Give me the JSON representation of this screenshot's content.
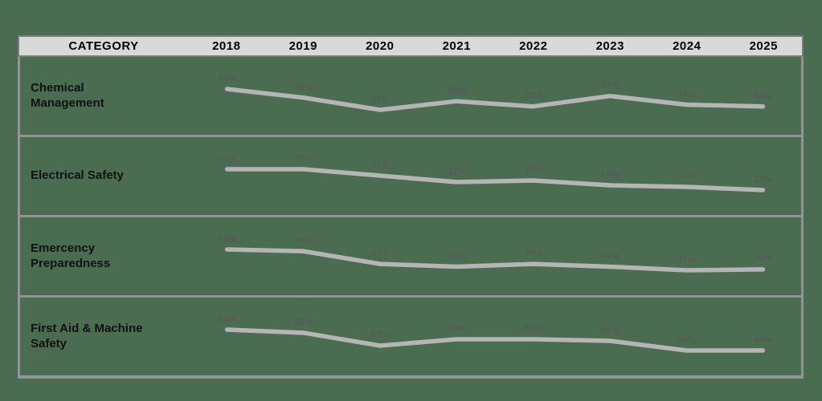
{
  "header": {
    "category_label": "CATEGORY"
  },
  "chart_data": {
    "type": "line",
    "categories": [
      "2018",
      "2019",
      "2020",
      "2021",
      "2022",
      "2023",
      "2024",
      "2025"
    ],
    "series": [
      {
        "name": "Chemical Management",
        "values": [
          43,
          38,
          31,
          36,
          33,
          39,
          34,
          33
        ]
      },
      {
        "name": "Electrical Safety",
        "values": [
          25,
          25,
          21,
          17,
          18,
          15,
          14,
          12
        ]
      },
      {
        "name": "Emercency Preparedness",
        "values": [
          60,
          58,
          44,
          41,
          44,
          41,
          37,
          38
        ]
      },
      {
        "name": "First Aid & Machine Safety",
        "values": [
          63,
          61,
          53,
          57,
          57,
          56,
          50,
          50
        ]
      }
    ],
    "value_suffix": "%",
    "title": "",
    "xlabel": "",
    "ylabel": "",
    "layout": {
      "grid": false,
      "legend": false,
      "per_row_sparklines": true,
      "labels_above_points": true
    }
  },
  "colors": {
    "background": "#4A6D51",
    "header_bg": "#D9D9D9",
    "border": "#949494",
    "sparkline": "#B5B5B5",
    "value_label": "#595959",
    "header_text": "#000000",
    "category_text": "#111111"
  }
}
